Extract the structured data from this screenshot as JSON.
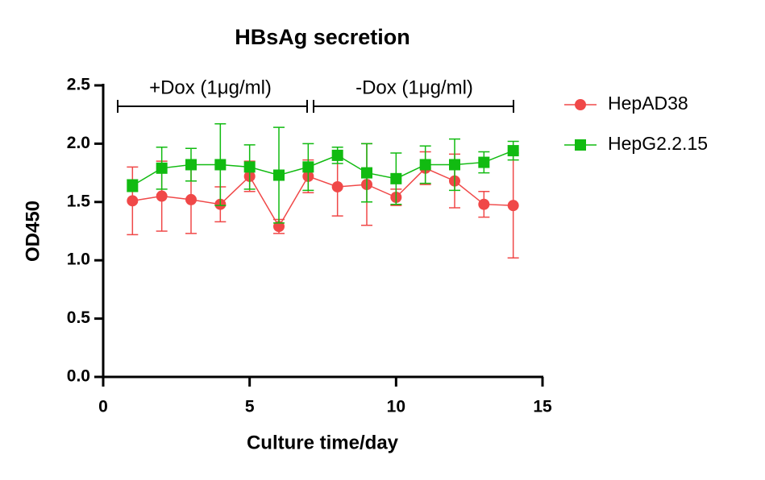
{
  "chart_data": {
    "type": "line",
    "title": "HBsAg secretion",
    "x_label": "Culture time/day",
    "y_label": "OD450",
    "annotations": [
      "+Dox (1μg/ml)",
      "-Dox (1μg/ml)"
    ],
    "x": [
      1,
      2,
      3,
      4,
      5,
      6,
      7,
      8,
      9,
      10,
      11,
      12,
      13,
      14
    ],
    "series": [
      {
        "name": "HepAD38",
        "color": "#f04848",
        "marker": "circle",
        "values": [
          1.51,
          1.55,
          1.52,
          1.48,
          1.72,
          1.29,
          1.72,
          1.63,
          1.65,
          1.54,
          1.79,
          1.68,
          1.48,
          1.47
        ],
        "errors": [
          0.29,
          0.3,
          0.29,
          0.15,
          0.13,
          0.06,
          0.14,
          0.25,
          0.35,
          0.07,
          0.14,
          0.23,
          0.11,
          0.45
        ]
      },
      {
        "name": "HepG2.2.15",
        "color": "#11bb11",
        "marker": "square",
        "values": [
          1.64,
          1.79,
          1.82,
          1.82,
          1.8,
          1.73,
          1.8,
          1.9,
          1.75,
          1.7,
          1.82,
          1.82,
          1.84,
          1.94
        ],
        "errors": [
          0.05,
          0.18,
          0.14,
          0.35,
          0.19,
          0.41,
          0.2,
          0.07,
          0.25,
          0.22,
          0.16,
          0.22,
          0.09,
          0.08
        ]
      }
    ],
    "xlim": [
      0,
      15
    ],
    "xticks": [
      0,
      5,
      10,
      15
    ],
    "ylim": [
      0,
      2.5
    ],
    "yticks": [
      {
        "value": 0,
        "label": "0.0"
      },
      0.5,
      {
        "value": 1,
        "label": "1.0"
      },
      1.5,
      {
        "value": 2,
        "label": "2.0"
      },
      2.5
    ],
    "grid": false,
    "legend": "right"
  }
}
